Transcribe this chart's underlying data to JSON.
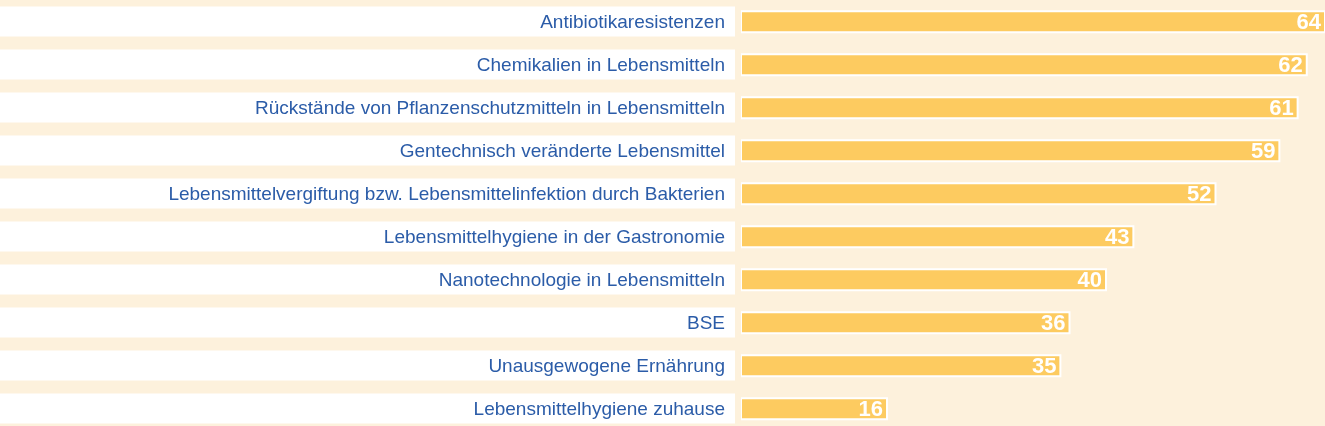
{
  "chart_data": {
    "type": "bar",
    "orientation": "horizontal",
    "categories": [
      "Antibiotikaresistenzen",
      "Chemikalien in Lebensmitteln",
      "Rückstände von Pflanzenschutzmitteln in Lebensmitteln",
      "Gentechnisch veränderte Lebensmittel",
      "Lebensmittelvergiftung bzw. Lebensmittelinfektion durch Bakterien",
      "Lebensmittelhygiene in der Gastronomie",
      "Nanotechnologie in Lebensmitteln",
      "BSE",
      "Unausgewogene Ernährung",
      "Lebensmittelhygiene zuhause"
    ],
    "values": [
      64,
      62,
      61,
      59,
      52,
      43,
      40,
      36,
      35,
      16
    ],
    "color": "#fdcb60",
    "xlim": [
      0,
      64
    ],
    "data_labels": true,
    "tick_labels": "y"
  }
}
